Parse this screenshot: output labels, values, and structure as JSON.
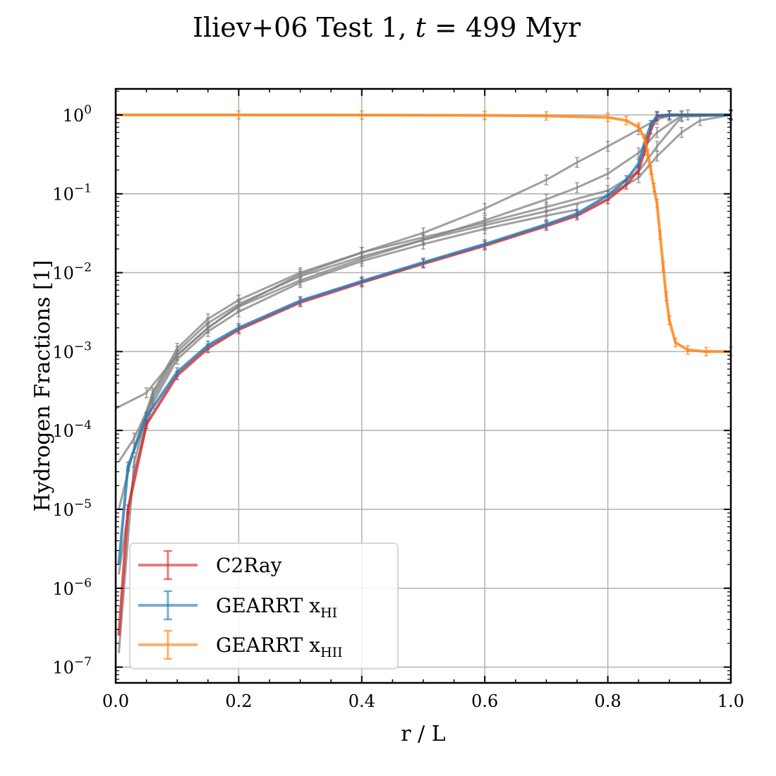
{
  "chart_data": {
    "type": "line",
    "title": "Iliev+06 Test 1, t = 499 Myr",
    "title_prefix": "Iliev+06 Test 1, ",
    "title_var": "t",
    "title_suffix": " = 499 Myr",
    "xlabel": "r / L",
    "ylabel": "Hydrogen Fractions [1]",
    "xlim": [
      0.0,
      1.0
    ],
    "ylim_log10": [
      -7.2,
      0.33
    ],
    "yscale": "log",
    "grid": true,
    "legend_position": "lower-left",
    "x_ticks": [
      {
        "value": 0.0,
        "label": "0.0"
      },
      {
        "value": 0.2,
        "label": "0.2"
      },
      {
        "value": 0.4,
        "label": "0.4"
      },
      {
        "value": 0.6,
        "label": "0.6"
      },
      {
        "value": 0.8,
        "label": "0.8"
      },
      {
        "value": 1.0,
        "label": "1.0"
      }
    ],
    "y_ticks": [
      {
        "exp": 0,
        "label_base": "10",
        "label_exp": "0"
      },
      {
        "exp": -1,
        "label_base": "10",
        "label_exp": "−1"
      },
      {
        "exp": -2,
        "label_base": "10",
        "label_exp": "−2"
      },
      {
        "exp": -3,
        "label_base": "10",
        "label_exp": "−3"
      },
      {
        "exp": -4,
        "label_base": "10",
        "label_exp": "−4"
      },
      {
        "exp": -5,
        "label_base": "10",
        "label_exp": "−5"
      },
      {
        "exp": -6,
        "label_base": "10",
        "label_exp": "−6"
      },
      {
        "exp": -7,
        "label_base": "10",
        "label_exp": "−7"
      }
    ],
    "series": [
      {
        "name": "C2Ray",
        "color": "#d62728",
        "x": [
          0.005,
          0.02,
          0.05,
          0.1,
          0.15,
          0.2,
          0.3,
          0.4,
          0.5,
          0.6,
          0.7,
          0.75,
          0.8,
          0.83,
          0.85,
          0.86,
          0.87,
          0.88,
          0.9,
          1.0
        ],
        "y": [
          2.5e-07,
          1e-05,
          0.00012,
          0.0005,
          0.0011,
          0.0019,
          0.0042,
          0.0075,
          0.013,
          0.022,
          0.039,
          0.053,
          0.085,
          0.13,
          0.2,
          0.35,
          0.65,
          0.95,
          1.0,
          1.0
        ]
      },
      {
        "name": "GEARRT x_HI",
        "color": "#1f77b4",
        "x": [
          0.005,
          0.02,
          0.05,
          0.1,
          0.15,
          0.2,
          0.3,
          0.4,
          0.5,
          0.6,
          0.7,
          0.75,
          0.8,
          0.83,
          0.85,
          0.86,
          0.87,
          0.88,
          0.9,
          1.0
        ],
        "y": [
          2e-06,
          3.5e-05,
          0.00015,
          0.00055,
          0.0012,
          0.002,
          0.0044,
          0.0078,
          0.0135,
          0.023,
          0.041,
          0.056,
          0.095,
          0.15,
          0.24,
          0.45,
          0.75,
          0.98,
          1.0,
          1.0
        ]
      },
      {
        "name": "GEARRT x_HII",
        "color": "#ff7f0e",
        "x": [
          0.0,
          0.2,
          0.4,
          0.6,
          0.7,
          0.8,
          0.83,
          0.85,
          0.86,
          0.865,
          0.87,
          0.875,
          0.88,
          0.885,
          0.89,
          0.895,
          0.9,
          0.91,
          0.93,
          0.96,
          1.0
        ],
        "y": [
          1.0,
          1.0,
          0.995,
          0.985,
          0.97,
          0.93,
          0.85,
          0.7,
          0.5,
          0.32,
          0.2,
          0.12,
          0.075,
          0.03,
          0.012,
          0.005,
          0.0025,
          0.0013,
          0.00105,
          0.001,
          0.001
        ]
      },
      {
        "name": "",
        "color": "#808080",
        "x": [
          0.0,
          0.05,
          0.1,
          0.15,
          0.2,
          0.3,
          0.4,
          0.5,
          0.6,
          0.7,
          0.75,
          0.8,
          0.85,
          0.88,
          0.92,
          1.0
        ],
        "y": [
          0.00019,
          0.0003,
          0.0009,
          0.002,
          0.0037,
          0.008,
          0.015,
          0.026,
          0.046,
          0.085,
          0.12,
          0.18,
          0.33,
          0.6,
          0.98,
          1.0
        ]
      },
      {
        "name": "",
        "color": "#808080",
        "x": [
          0.005,
          0.03,
          0.06,
          0.1,
          0.15,
          0.2,
          0.3,
          0.4,
          0.5,
          0.6,
          0.7,
          0.75,
          0.8,
          0.85,
          0.88,
          0.9,
          0.93,
          1.0
        ],
        "y": [
          4e-05,
          8e-05,
          0.00025,
          0.0009,
          0.002,
          0.0038,
          0.0095,
          0.018,
          0.032,
          0.065,
          0.15,
          0.25,
          0.4,
          0.65,
          0.88,
          0.97,
          1.0,
          1.0
        ]
      },
      {
        "name": "",
        "color": "#808080",
        "x": [
          0.005,
          0.03,
          0.06,
          0.1,
          0.15,
          0.2,
          0.3,
          0.4,
          0.5,
          0.6,
          0.7,
          0.8,
          0.85,
          0.88,
          0.92,
          1.0
        ],
        "y": [
          1e-05,
          6e-05,
          0.0003,
          0.0011,
          0.0026,
          0.0045,
          0.01,
          0.018,
          0.028,
          0.043,
          0.068,
          0.11,
          0.19,
          0.4,
          0.95,
          1.0
        ]
      },
      {
        "name": "",
        "color": "#808080",
        "x": [
          0.005,
          0.03,
          0.06,
          0.1,
          0.15,
          0.2,
          0.3,
          0.4,
          0.5,
          0.6,
          0.7,
          0.75
        ],
        "y": [
          1.5e-06,
          3e-05,
          0.00022,
          0.0008,
          0.0018,
          0.0032,
          0.0075,
          0.014,
          0.023,
          0.036,
          0.053,
          0.063
        ]
      },
      {
        "name": "",
        "color": "#808080",
        "x": [
          0.005,
          0.03,
          0.06,
          0.1,
          0.15,
          0.2,
          0.3,
          0.4,
          0.5,
          0.6,
          0.7,
          0.8,
          0.85,
          0.88,
          0.92,
          0.95,
          1.0
        ],
        "y": [
          1.5e-07,
          4e-05,
          0.00028,
          0.001,
          0.0023,
          0.004,
          0.009,
          0.016,
          0.026,
          0.04,
          0.06,
          0.095,
          0.16,
          0.3,
          0.6,
          0.85,
          1.0
        ]
      }
    ]
  },
  "legend": {
    "items": [
      {
        "label": "C2Ray",
        "label_sub": "",
        "color": "#d62728"
      },
      {
        "label": "GEARRT x",
        "label_sub": "HI",
        "color": "#1f77b4"
      },
      {
        "label": "GEARRT x",
        "label_sub": "HII",
        "color": "#ff7f0e"
      }
    ]
  }
}
